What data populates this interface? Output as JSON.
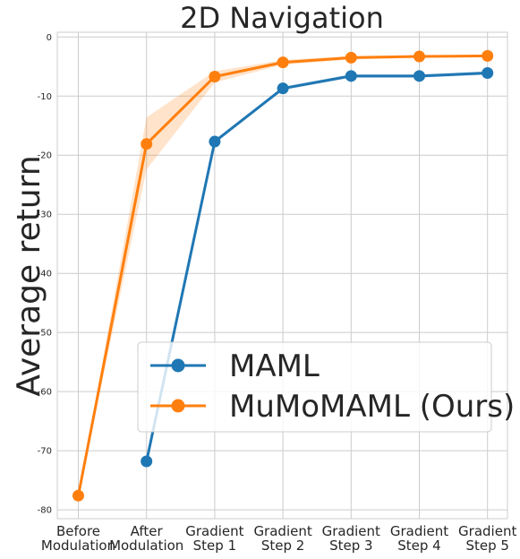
{
  "chart_data": {
    "type": "line",
    "title": "2D Navigation",
    "xlabel": "",
    "ylabel": "Average return",
    "categories": [
      [
        "Before",
        "Modulation"
      ],
      [
        "After",
        "Modulation"
      ],
      [
        "Gradient",
        "Step 1"
      ],
      [
        "Gradient",
        "Step 2"
      ],
      [
        "Gradient",
        "Step 3"
      ],
      [
        "Gradient",
        "Step 4"
      ],
      [
        "Gradient",
        "Step 5"
      ]
    ],
    "ylim": [
      -81.5,
      0.8
    ],
    "yticks": [
      0,
      -10,
      -20,
      -30,
      -40,
      -50,
      -60,
      -70,
      -80
    ],
    "grid": true,
    "legend_position": "center-right",
    "series": [
      {
        "name": "MAML",
        "color": "#1f77b4",
        "values": [
          null,
          -71.8,
          -17.7,
          -8.7,
          -6.6,
          -6.6,
          -6.1
        ],
        "band_low": [
          null,
          -71.8,
          -18.0,
          -9.0,
          -6.9,
          -6.9,
          -6.4
        ],
        "band_high": [
          null,
          -71.8,
          -17.4,
          -8.4,
          -6.3,
          -6.3,
          -5.8
        ]
      },
      {
        "name": "MuMoMAML (Ours)",
        "color": "#ff7f0e",
        "values": [
          -77.6,
          -18.1,
          -6.7,
          -4.3,
          -3.5,
          -3.3,
          -3.2
        ],
        "band_low": [
          -77.6,
          -22.4,
          -7.7,
          -4.7,
          -3.8,
          -3.5,
          -3.4
        ],
        "band_high": [
          -77.6,
          -13.6,
          -5.8,
          -3.9,
          -3.2,
          -3.1,
          -3.0
        ]
      }
    ]
  }
}
